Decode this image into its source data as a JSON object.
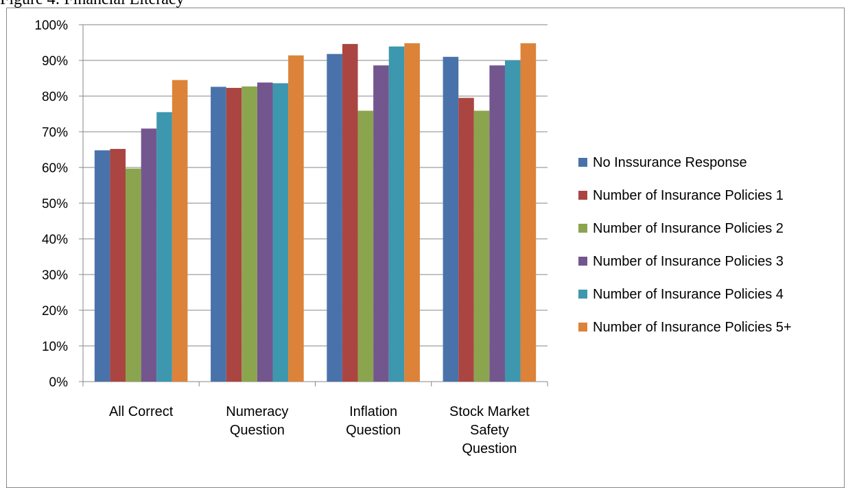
{
  "caption": "Figure 4: Financial Literacy",
  "chart_data": {
    "type": "bar",
    "categories": [
      [
        "All Correct"
      ],
      [
        "Numeracy",
        "Question"
      ],
      [
        "Inflation",
        "Question"
      ],
      [
        "Stock Market",
        "Safety",
        "Question"
      ]
    ],
    "series": [
      {
        "name": "No Inssurance Response",
        "color": "#4a72aa",
        "values": [
          64.8,
          82.6,
          91.8,
          91.0
        ]
      },
      {
        "name": "Number of Insurance Policies 1",
        "color": "#ab4542",
        "values": [
          65.2,
          82.3,
          94.6,
          79.5
        ]
      },
      {
        "name": "Number of Insurance Policies 2",
        "color": "#8ba54e",
        "values": [
          59.7,
          82.7,
          75.9,
          75.9
        ]
      },
      {
        "name": "Number of Insurance Policies 3",
        "color": "#73568e",
        "values": [
          70.9,
          83.8,
          88.6,
          88.6
        ]
      },
      {
        "name": "Number of Insurance Policies 4",
        "color": "#3d97ae",
        "values": [
          75.5,
          83.6,
          93.9,
          90.0
        ]
      },
      {
        "name": "Number of Insurance Policies 5+",
        "color": "#dc8339",
        "values": [
          84.5,
          91.4,
          94.8,
          94.8
        ]
      }
    ],
    "ylim": [
      0,
      100
    ],
    "ytick_step": 10,
    "ytick_labels": [
      "0%",
      "10%",
      "20%",
      "30%",
      "40%",
      "50%",
      "60%",
      "70%",
      "80%",
      "90%",
      "100%"
    ],
    "grid": true,
    "legend_position": "right"
  }
}
